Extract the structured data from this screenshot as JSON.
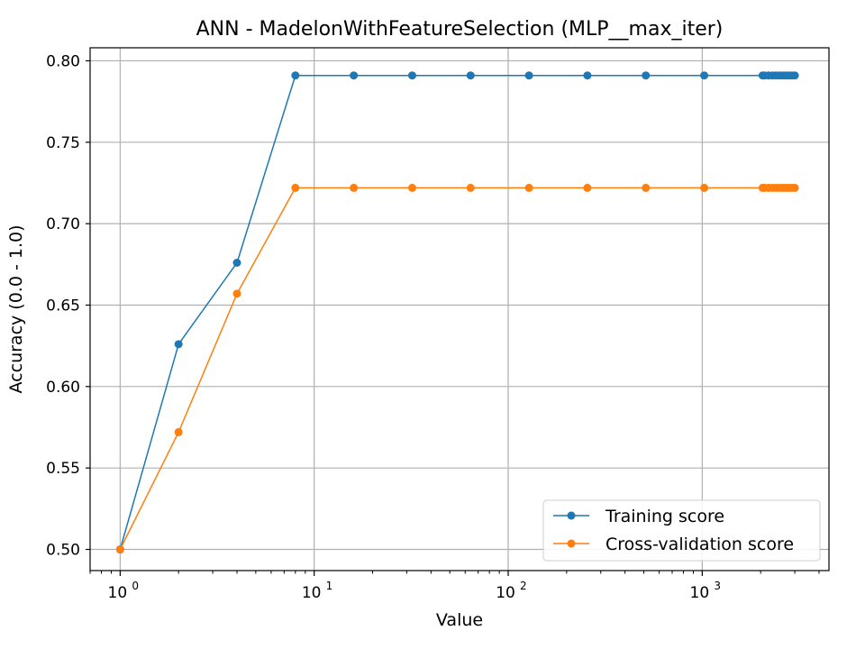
{
  "chart_data": {
    "type": "line",
    "title": "ANN - MadelonWithFeatureSelection (MLP__max_iter)",
    "xlabel": "Value",
    "ylabel": "Accuracy (0.0 - 1.0)",
    "xscale": "log",
    "xlim": [
      0.7,
      4500
    ],
    "ylim": [
      0.487,
      0.808
    ],
    "grid": true,
    "legend_position": "lower-right",
    "x_major_ticks": [
      {
        "value": 1,
        "base": "10",
        "exp": "0"
      },
      {
        "value": 10,
        "base": "10",
        "exp": "1"
      },
      {
        "value": 100,
        "base": "10",
        "exp": "2"
      },
      {
        "value": 1000,
        "base": "10",
        "exp": "3"
      }
    ],
    "y_ticks": [
      {
        "value": 0.5,
        "label": "0.50"
      },
      {
        "value": 0.55,
        "label": "0.55"
      },
      {
        "value": 0.6,
        "label": "0.60"
      },
      {
        "value": 0.65,
        "label": "0.65"
      },
      {
        "value": 0.7,
        "label": "0.70"
      },
      {
        "value": 0.75,
        "label": "0.75"
      },
      {
        "value": 0.8,
        "label": "0.80"
      }
    ],
    "x": [
      1,
      2,
      4,
      8,
      16,
      32,
      64,
      128,
      256,
      512,
      1024,
      2048,
      2100,
      2200,
      2300,
      2400,
      2500,
      2600,
      2700,
      2800,
      2900,
      3000
    ],
    "series": [
      {
        "name": "Training score",
        "color": "#1f77b4",
        "values": [
          0.5,
          0.626,
          0.676,
          0.791,
          0.791,
          0.791,
          0.791,
          0.791,
          0.791,
          0.791,
          0.791,
          0.791,
          0.791,
          0.791,
          0.791,
          0.791,
          0.791,
          0.791,
          0.791,
          0.791,
          0.791,
          0.791
        ]
      },
      {
        "name": "Cross-validation score",
        "color": "#ff7f0e",
        "values": [
          0.5,
          0.572,
          0.657,
          0.722,
          0.722,
          0.722,
          0.722,
          0.722,
          0.722,
          0.722,
          0.722,
          0.722,
          0.722,
          0.722,
          0.722,
          0.722,
          0.722,
          0.722,
          0.722,
          0.722,
          0.722,
          0.722
        ]
      }
    ]
  }
}
